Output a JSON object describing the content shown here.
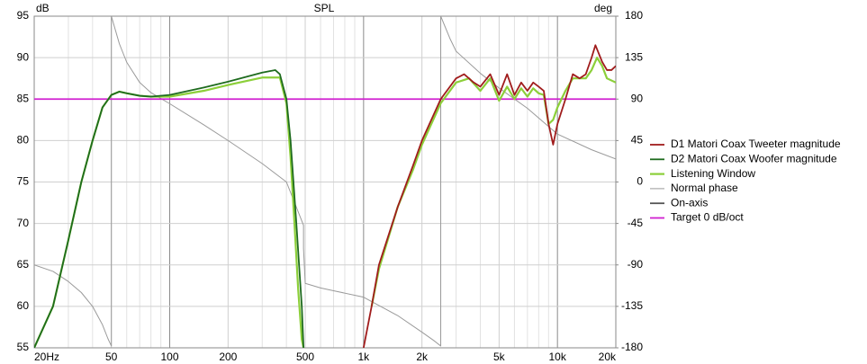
{
  "chart_data": {
    "type": "line",
    "title": "SPL",
    "ylabel": "dB",
    "y2label": "deg",
    "log_x": true,
    "grid": true,
    "xlim": [
      20,
      20000
    ],
    "ylim": [
      55,
      95
    ],
    "y2lim": [
      -180,
      180
    ],
    "xticks": [
      {
        "value": 20,
        "label": "20Hz"
      },
      50,
      100,
      200,
      500,
      {
        "value": 1000,
        "label": "1k"
      },
      {
        "value": 2000,
        "label": "2k"
      },
      {
        "value": 5000,
        "label": "5k"
      },
      {
        "value": 10000,
        "label": "10k"
      },
      {
        "value": 20000,
        "label": "20k"
      }
    ],
    "xminorticks": [
      30,
      40,
      60,
      70,
      80,
      90,
      300,
      400,
      600,
      700,
      800,
      900,
      3000,
      4000,
      6000,
      7000,
      8000,
      9000
    ],
    "yticks": [
      55,
      60,
      65,
      70,
      75,
      80,
      85,
      90,
      95
    ],
    "y2ticks": [
      -180,
      -135,
      -90,
      -45,
      0,
      45,
      90,
      135,
      180
    ],
    "series": [
      {
        "name": "Normal phase",
        "color": "#9a9a9a",
        "axis": "y2",
        "x": [
          20,
          25,
          30,
          35,
          40,
          45,
          48,
          50,
          50,
          55,
          60,
          70,
          80,
          100,
          150,
          200,
          300,
          400,
          490,
          490,
          500,
          600,
          700,
          1000,
          1500,
          2000,
          2300,
          2500,
          2500,
          2800,
          3000,
          4000,
          5000,
          7000,
          10000,
          15000,
          20000
        ],
        "values": [
          -90,
          -97,
          -108,
          -120,
          -135,
          -155,
          -170,
          -178,
          180,
          150,
          130,
          108,
          97,
          85,
          62,
          45,
          20,
          0,
          -47,
          -72,
          -110,
          -115,
          -118,
          -125,
          -145,
          -163,
          -172,
          -178,
          180,
          155,
          142,
          118,
          102,
          80,
          52,
          35,
          25
        ]
      },
      {
        "name": "Target 0 dB/oct",
        "color": "#d020d0",
        "x": [
          20,
          20000
        ],
        "values": [
          85,
          85
        ]
      },
      {
        "name": "Listening Window",
        "color": "#8ccf3a",
        "x": [
          20,
          25,
          30,
          35,
          40,
          45,
          50,
          55,
          60,
          70,
          80,
          100,
          150,
          200,
          300,
          370,
          400,
          420,
          440,
          460,
          480,
          490,
          1000,
          1100,
          1200,
          1500,
          1800,
          2000,
          2500,
          3000,
          3500,
          4000,
          4500,
          5000,
          5500,
          6000,
          6500,
          7000,
          7500,
          8000,
          8500,
          9000,
          9500,
          10000,
          11000,
          12000,
          14000,
          15000,
          16000,
          17000,
          18000,
          20000
        ],
        "values": [
          55,
          60,
          68,
          75,
          80,
          84,
          85.5,
          85.9,
          85.7,
          85.4,
          85.3,
          85.3,
          86,
          86.7,
          87.6,
          87.6,
          84.5,
          78,
          70,
          62,
          56,
          55,
          null,
          60,
          64.5,
          72,
          76.5,
          79.5,
          84.5,
          87,
          87.5,
          86,
          87.5,
          84.8,
          86.5,
          85,
          86.3,
          85.3,
          86.3,
          85.7,
          85.5,
          82,
          82.5,
          84,
          86,
          87.5,
          87.5,
          88.5,
          90,
          89,
          87.5,
          87
        ]
      },
      {
        "name": "D2 Matori Coax Woofer magnitude",
        "color": "#1e6b1e",
        "x": [
          20,
          25,
          30,
          35,
          40,
          45,
          50,
          55,
          60,
          70,
          80,
          100,
          150,
          200,
          300,
          350,
          370,
          400,
          420,
          450,
          480,
          490
        ],
        "values": [
          55,
          60,
          68,
          75,
          80,
          84,
          85.5,
          85.9,
          85.7,
          85.4,
          85.3,
          85.5,
          86.4,
          87.1,
          88.2,
          88.5,
          88,
          85,
          80,
          70,
          60,
          55
        ]
      },
      {
        "name": "D1 Matori Coax Tweeter magnitude",
        "color": "#a01c1c",
        "x": [
          1000,
          1100,
          1200,
          1500,
          1800,
          2000,
          2500,
          3000,
          3300,
          3700,
          4000,
          4500,
          5000,
          5500,
          6000,
          6500,
          7000,
          7500,
          8000,
          8500,
          9000,
          9500,
          10000,
          11000,
          12000,
          13000,
          14000,
          15000,
          15700,
          17000,
          18000,
          19000,
          20000
        ],
        "values": [
          55,
          60,
          65,
          72,
          77,
          80,
          85,
          87.5,
          88,
          87,
          86.5,
          88,
          85.5,
          88,
          85.5,
          87,
          86,
          87,
          86.5,
          86,
          82,
          79.5,
          82,
          85,
          88,
          87.5,
          88,
          90,
          91.5,
          89.5,
          88.5,
          88.5,
          89
        ]
      },
      {
        "name": "On-axis",
        "color": "#555555",
        "x": [],
        "values": []
      }
    ],
    "legend_order": [
      4,
      3,
      2,
      0,
      5,
      1
    ]
  }
}
